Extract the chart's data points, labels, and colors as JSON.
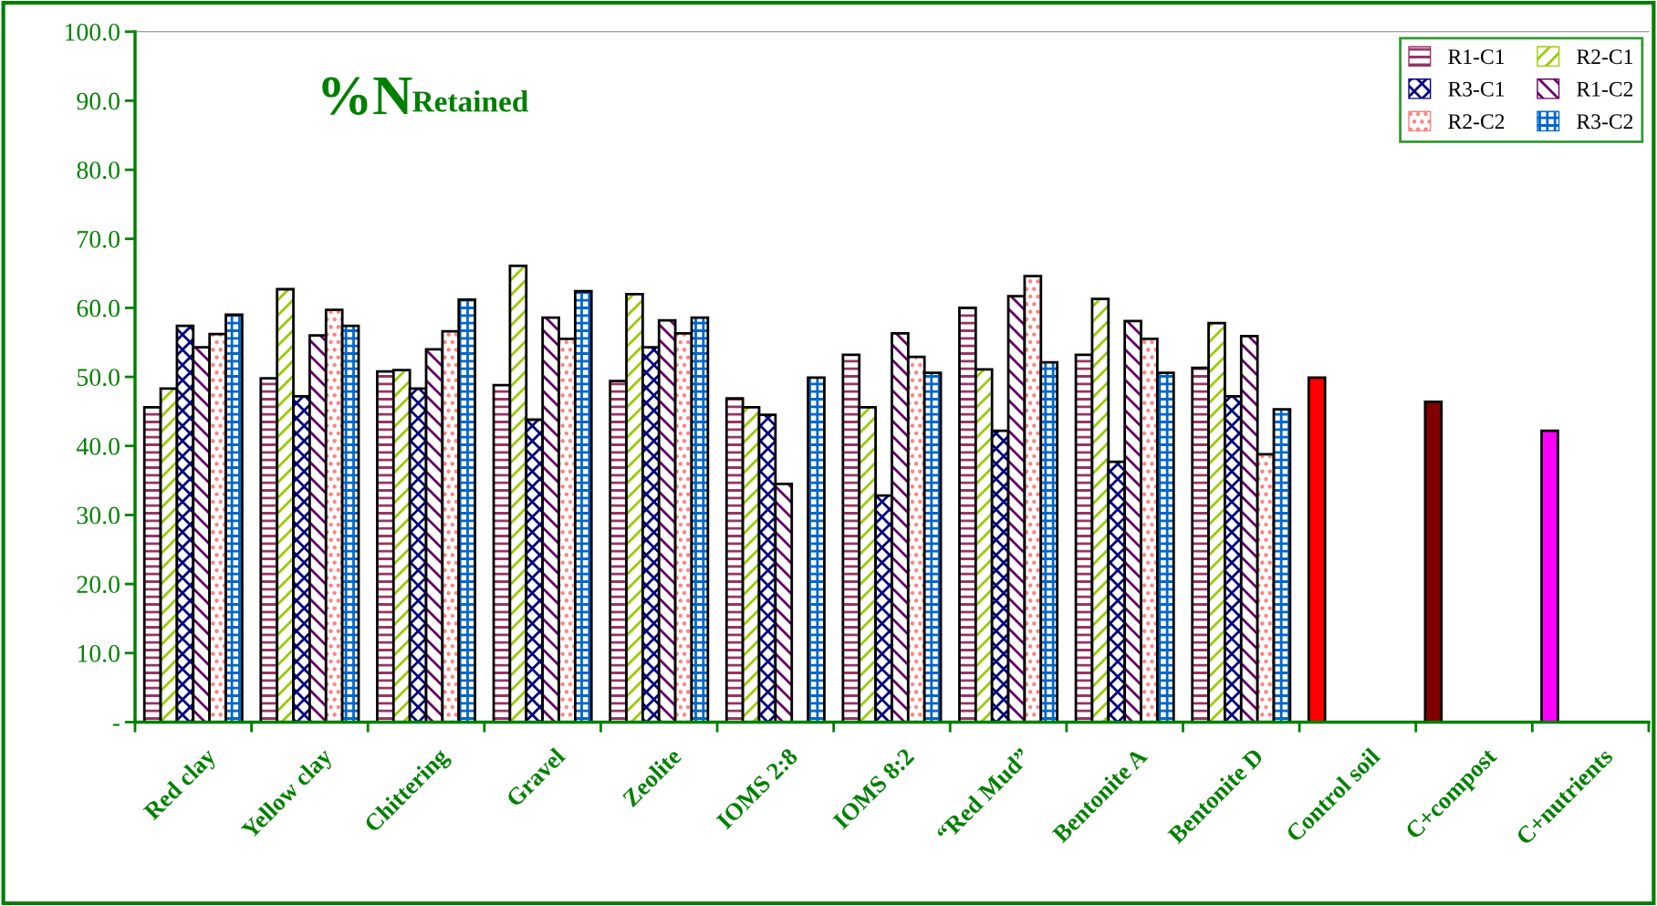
{
  "chart_data": {
    "type": "bar",
    "title": "%N",
    "subtitle": "Retained",
    "categories": [
      "Red clay",
      "Yellow clay",
      "Chittering",
      "Gravel",
      "Zeolite",
      "IOMS 2:8",
      "IOMS 8:2",
      "“Red Mud”",
      "Bentonite A",
      "Bentonite D",
      "Control soil",
      "C+compost",
      "C+nutrients"
    ],
    "series": [
      {
        "name": "R1-C1",
        "color": "#993366",
        "colors": [
          "#993366",
          "#993366",
          "#993366",
          "#993366",
          "#993366",
          "#993366",
          "#993366",
          "#993366",
          "#993366",
          "#993366",
          "#ff0000",
          "#800000",
          "#ff00ff"
        ],
        "values": [
          45.6,
          49.8,
          50.8,
          48.8,
          49.4,
          46.9,
          53.2,
          60.0,
          53.2,
          51.3,
          49.9,
          46.4,
          42.2
        ]
      },
      {
        "name": "R2-C1",
        "color": "#99cc00",
        "values": [
          48.3,
          62.7,
          51.0,
          66.1,
          62.0,
          45.6,
          45.6,
          51.1,
          61.3,
          57.8,
          null,
          null,
          null
        ]
      },
      {
        "name": "R3-C1",
        "color": "#000080",
        "values": [
          57.4,
          47.2,
          48.3,
          43.8,
          54.3,
          44.5,
          32.8,
          42.2,
          37.7,
          47.2,
          null,
          null,
          null
        ]
      },
      {
        "name": "R1-C2",
        "color": "#660066",
        "values": [
          54.3,
          56.0,
          54.0,
          58.6,
          58.2,
          34.5,
          56.3,
          61.7,
          58.1,
          55.9,
          null,
          null,
          null
        ]
      },
      {
        "name": "R2-C2",
        "color": "#ff8080",
        "values": [
          56.2,
          59.7,
          56.6,
          55.5,
          56.3,
          null,
          52.9,
          64.6,
          55.5,
          38.8,
          null,
          null,
          null
        ]
      },
      {
        "name": "R3-C2",
        "color": "#0066cc",
        "values": [
          59.0,
          57.4,
          61.2,
          62.4,
          58.6,
          49.9,
          50.6,
          52.1,
          50.6,
          45.3,
          null,
          null,
          null
        ]
      }
    ],
    "ylim": [
      0,
      100
    ],
    "yticks": [
      {
        "value": 0,
        "label": "-"
      },
      {
        "value": 10,
        "label": "10.0"
      },
      {
        "value": 20,
        "label": "20.0"
      },
      {
        "value": 30,
        "label": "30.0"
      },
      {
        "value": 40,
        "label": "40.0"
      },
      {
        "value": 50,
        "label": "50.0"
      },
      {
        "value": 60,
        "label": "60.0"
      },
      {
        "value": 70,
        "label": "70.0"
      },
      {
        "value": 80,
        "label": "80.0"
      },
      {
        "value": 90,
        "label": "90.0"
      },
      {
        "value": 100,
        "label": "100.0"
      }
    ],
    "grid": false,
    "legend": "top right"
  }
}
